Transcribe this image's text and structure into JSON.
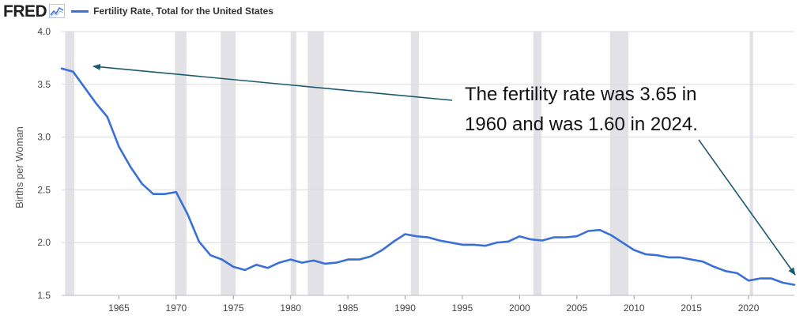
{
  "header": {
    "logo": "FRED",
    "logo_icon": "chart-line-icon",
    "series_label": "Fertility Rate, Total for the United States"
  },
  "colors": {
    "line": "#3a6fd8",
    "recession": "#e1e1e6",
    "grid": "#dcdcdc",
    "annotation_arrow": "#1b5a6e"
  },
  "annotation": {
    "line1": "The fertility rate was 3.65 in",
    "line2": "1960 and was 1.60 in 2024."
  },
  "chart_data": {
    "type": "line",
    "title": "Fertility Rate, Total for the United States",
    "xlabel": "",
    "ylabel": "Births per Woman",
    "xlim": [
      1960,
      2024
    ],
    "ylim": [
      1.5,
      4.0
    ],
    "y_ticks": [
      "1.5",
      "2.0",
      "2.5",
      "3.0",
      "3.5",
      "4.0"
    ],
    "y_tick_values": [
      1.5,
      2.0,
      2.5,
      3.0,
      3.5,
      4.0
    ],
    "x_ticks": [
      "1965",
      "1970",
      "1975",
      "1980",
      "1985",
      "1990",
      "1995",
      "2000",
      "2005",
      "2010",
      "2015",
      "2020"
    ],
    "x_tick_values": [
      1965,
      1970,
      1975,
      1980,
      1985,
      1990,
      1995,
      2000,
      2005,
      2010,
      2015,
      2020
    ],
    "grid": "horizontal",
    "recessions": [
      [
        1960.3,
        1961.1
      ],
      [
        1969.9,
        1970.9
      ],
      [
        1973.9,
        1975.2
      ],
      [
        1980.0,
        1980.5
      ],
      [
        1981.5,
        1982.9
      ],
      [
        1990.5,
        1991.2
      ],
      [
        2001.2,
        2001.9
      ],
      [
        2007.9,
        2009.5
      ],
      [
        2020.1,
        2020.4
      ]
    ],
    "series": [
      {
        "name": "Fertility Rate, Total for the United States",
        "x": [
          1960,
          1961,
          1962,
          1963,
          1964,
          1965,
          1966,
          1967,
          1968,
          1969,
          1970,
          1971,
          1972,
          1973,
          1974,
          1975,
          1976,
          1977,
          1978,
          1979,
          1980,
          1981,
          1982,
          1983,
          1984,
          1985,
          1986,
          1987,
          1988,
          1989,
          1990,
          1991,
          1992,
          1993,
          1994,
          1995,
          1996,
          1997,
          1998,
          1999,
          2000,
          2001,
          2002,
          2003,
          2004,
          2005,
          2006,
          2007,
          2008,
          2009,
          2010,
          2011,
          2012,
          2013,
          2014,
          2015,
          2016,
          2017,
          2018,
          2019,
          2020,
          2021,
          2022,
          2023,
          2024
        ],
        "values": [
          3.65,
          3.62,
          3.47,
          3.32,
          3.19,
          2.91,
          2.72,
          2.56,
          2.46,
          2.46,
          2.48,
          2.27,
          2.01,
          1.88,
          1.84,
          1.77,
          1.74,
          1.79,
          1.76,
          1.81,
          1.84,
          1.81,
          1.83,
          1.8,
          1.81,
          1.84,
          1.84,
          1.87,
          1.93,
          2.01,
          2.08,
          2.06,
          2.05,
          2.02,
          2.0,
          1.98,
          1.98,
          1.97,
          2.0,
          2.01,
          2.06,
          2.03,
          2.02,
          2.05,
          2.05,
          2.06,
          2.11,
          2.12,
          2.07,
          2.0,
          1.93,
          1.89,
          1.88,
          1.86,
          1.86,
          1.84,
          1.82,
          1.77,
          1.73,
          1.71,
          1.64,
          1.66,
          1.66,
          1.62,
          1.6
        ]
      }
    ]
  }
}
